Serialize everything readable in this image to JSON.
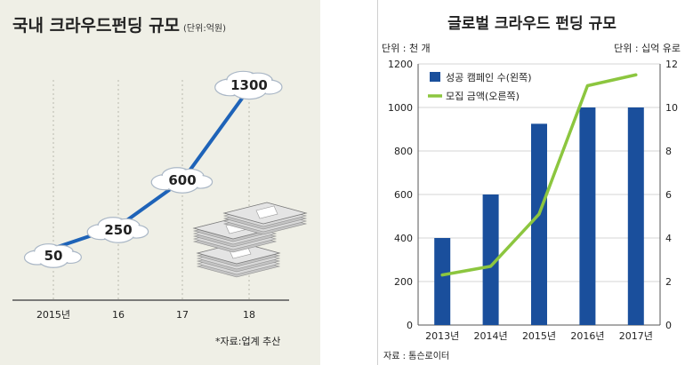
{
  "chart_data": [
    {
      "type": "line",
      "title": "국내 크라우드펀딩 규모",
      "unit": "(단위:억원)",
      "categories": [
        "2015년",
        "16",
        "17",
        "18"
      ],
      "values": [
        50,
        250,
        600,
        1300
      ],
      "value_labels": [
        "50",
        "250",
        "600",
        "1300"
      ],
      "source": "*자료:업계 추산",
      "ylim": [
        0,
        1400
      ],
      "colors": {
        "line": "#1e63b8",
        "background": "#efefe6"
      }
    },
    {
      "type": "bar",
      "title": "글로벌 크라우드 펀딩 규모",
      "categories": [
        "2013년",
        "2014년",
        "2015년",
        "2016년",
        "2017년"
      ],
      "series": [
        {
          "name": "성공 캠페인 수(왼쪽)",
          "type": "bar",
          "axis": "left",
          "values": [
            400,
            600,
            925,
            1000,
            1000
          ],
          "color": "#1a4f9c"
        },
        {
          "name": "모집 금액(오른쪽)",
          "type": "line",
          "axis": "right",
          "values": [
            2.3,
            2.7,
            5.1,
            11.0,
            11.5
          ],
          "color": "#8cc63f"
        }
      ],
      "left_axis": {
        "unit": "단위 : 천 개",
        "ylim": [
          0,
          1200
        ],
        "ticks": [
          0,
          200,
          400,
          600,
          800,
          1000,
          1200
        ]
      },
      "right_axis": {
        "unit": "단위 : 십억 유로",
        "ylim": [
          0,
          12
        ],
        "ticks": [
          0,
          2,
          4,
          6,
          8,
          10,
          12
        ]
      },
      "source": "자료 : 톰슨로이터"
    }
  ]
}
